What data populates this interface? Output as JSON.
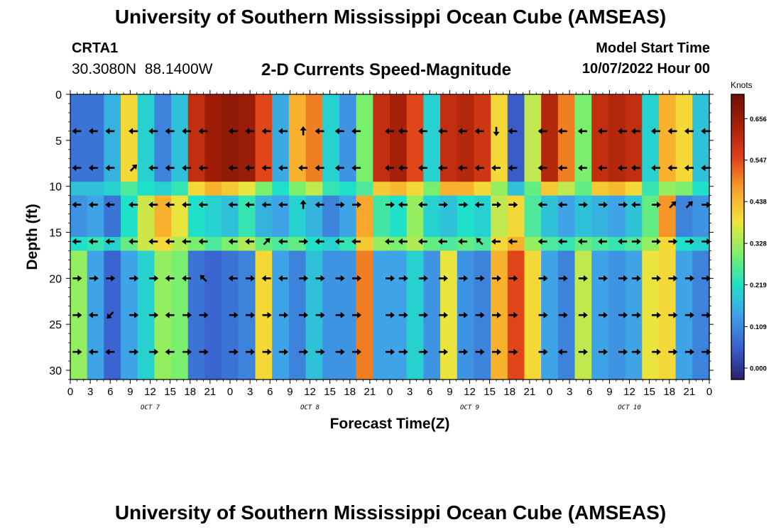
{
  "header": {
    "title": "University of Southern Mississippi Ocean Cube (AMSEAS)",
    "station_id": "CRTA1",
    "lat": "30.3080N",
    "lon": "88.1400W",
    "subtitle": "2-D Currents Speed-Magnitude",
    "model_start_label": "Model Start Time",
    "model_start_value": "10/07/2022 Hour 00"
  },
  "footer": {
    "title": "University of Southern Mississippi Ocean Cube (AMSEAS)"
  },
  "chart_data": {
    "type": "heatmap",
    "title": "2-D Currents Speed-Magnitude",
    "xlabel": "Forecast Time(Z)",
    "ylabel": "Depth (ft)",
    "x_hours_range": [
      0,
      96
    ],
    "ylim": [
      0,
      31
    ],
    "x_tick_step_hours": 3,
    "x_tick_labels": [
      "0",
      "3",
      "6",
      "9",
      "12",
      "15",
      "18",
      "21",
      "0",
      "3",
      "6",
      "9",
      "12",
      "15",
      "18",
      "21",
      "0",
      "3",
      "6",
      "9",
      "12",
      "15",
      "18",
      "21",
      "0",
      "3",
      "6",
      "9",
      "12",
      "15",
      "18",
      "21",
      "0"
    ],
    "day_labels": [
      {
        "text": "OCT 7",
        "hour": 12
      },
      {
        "text": "OCT 8",
        "hour": 36
      },
      {
        "text": "OCT 9",
        "hour": 60
      },
      {
        "text": "OCT 10",
        "hour": 84
      }
    ],
    "y_ticks": [
      0,
      5,
      10,
      15,
      20,
      25,
      30
    ],
    "colorbar": {
      "unit": "Knots",
      "range": [
        -0.03,
        0.72
      ],
      "tick_values": [
        0.0,
        0.109,
        0.219,
        0.328,
        0.438,
        0.547,
        0.656
      ],
      "tick_labels": [
        "0.000",
        "0.109",
        "0.219",
        "0.328",
        "0.438",
        "0.547",
        "0.656"
      ],
      "colors": [
        "#2a1f6e",
        "#3a5fcd",
        "#3fa0e8",
        "#1fe0c8",
        "#7ef06a",
        "#f2e33a",
        "#f9a12a",
        "#e0421a",
        "#a82008",
        "#6e1005"
      ]
    },
    "depth_bands": [
      {
        "top": 0,
        "bottom": 9.5
      },
      {
        "top": 9.5,
        "bottom": 11
      },
      {
        "top": 11,
        "bottom": 15.5
      },
      {
        "top": 15.5,
        "bottom": 17
      },
      {
        "top": 17,
        "bottom": 31
      }
    ],
    "speed_bands": [
      [
        0.08,
        0.08,
        0.16,
        0.4,
        0.2,
        0.1,
        0.18,
        0.6,
        0.65,
        0.67,
        0.66,
        0.55,
        0.15,
        0.45,
        0.5,
        0.2,
        0.12,
        0.3,
        0.6,
        0.64,
        0.55,
        0.2,
        0.6,
        0.62,
        0.58,
        0.4,
        0.05,
        0.35,
        0.62,
        0.5,
        0.3,
        0.6,
        0.62,
        0.6,
        0.2,
        0.45,
        0.4,
        0.18
      ],
      [
        0.18,
        0.18,
        0.2,
        0.26,
        0.22,
        0.2,
        0.24,
        0.4,
        0.45,
        0.42,
        0.38,
        0.3,
        0.22,
        0.3,
        0.35,
        0.24,
        0.22,
        0.26,
        0.42,
        0.44,
        0.4,
        0.3,
        0.45,
        0.45,
        0.4,
        0.32,
        0.18,
        0.28,
        0.42,
        0.35,
        0.28,
        0.42,
        0.44,
        0.4,
        0.24,
        0.32,
        0.3,
        0.22
      ],
      [
        0.12,
        0.14,
        0.08,
        0.22,
        0.36,
        0.45,
        0.38,
        0.22,
        0.2,
        0.18,
        0.24,
        0.16,
        0.14,
        0.2,
        0.16,
        0.1,
        0.14,
        0.46,
        0.25,
        0.22,
        0.32,
        0.2,
        0.18,
        0.22,
        0.2,
        0.35,
        0.4,
        0.26,
        0.18,
        0.14,
        0.18,
        0.16,
        0.14,
        0.18,
        0.28,
        0.48,
        0.1,
        0.12
      ],
      [
        0.22,
        0.24,
        0.2,
        0.28,
        0.36,
        0.4,
        0.34,
        0.3,
        0.26,
        0.3,
        0.34,
        0.28,
        0.26,
        0.28,
        0.22,
        0.2,
        0.24,
        0.42,
        0.32,
        0.3,
        0.34,
        0.28,
        0.26,
        0.28,
        0.26,
        0.4,
        0.45,
        0.32,
        0.26,
        0.24,
        0.28,
        0.26,
        0.24,
        0.26,
        0.32,
        0.4,
        0.22,
        0.2
      ],
      [
        0.32,
        0.14,
        0.06,
        0.14,
        0.2,
        0.32,
        0.3,
        0.08,
        0.06,
        0.08,
        0.1,
        0.4,
        0.14,
        0.1,
        0.18,
        0.12,
        0.12,
        0.5,
        0.14,
        0.14,
        0.2,
        0.12,
        0.38,
        0.12,
        0.1,
        0.45,
        0.55,
        0.4,
        0.14,
        0.1,
        0.35,
        0.14,
        0.12,
        0.14,
        0.38,
        0.4,
        0.14,
        0.1
      ]
    ],
    "arrow_depths": [
      4,
      8,
      12,
      16,
      20,
      24,
      28
    ],
    "arrow_times_hours": [
      1,
      3.5,
      6,
      9.5,
      12.5,
      15,
      17.5,
      20,
      24.5,
      27,
      29.5,
      32,
      35,
      37.5,
      40.5,
      43,
      48,
      50,
      53,
      56,
      59,
      61.5,
      64,
      66.5,
      71,
      74,
      77,
      80,
      83,
      85,
      88,
      90.5,
      93,
      95.5
    ],
    "arrow_direction_rows": [
      [
        "W",
        "W",
        "W",
        "W",
        "W",
        "W",
        "W",
        "W",
        "W",
        "W",
        "W",
        "W",
        "N",
        "W",
        "W",
        "W",
        "W",
        "W",
        "W",
        "W",
        "W",
        "W",
        "S",
        "W",
        "W",
        "W",
        "W",
        "W",
        "W",
        "W",
        "W",
        "W",
        "W",
        "W"
      ],
      [
        "W",
        "W",
        "W",
        "NE",
        "W",
        "W",
        "W",
        "W",
        "W",
        "W",
        "W",
        "W",
        "W",
        "W",
        "W",
        "W",
        "W",
        "W",
        "W",
        "W",
        "W",
        "W",
        "W",
        "W",
        "W",
        "W",
        "W",
        "W",
        "W",
        "W",
        "W",
        "W",
        "W",
        "W"
      ],
      [
        "W",
        "W",
        "W",
        "W",
        "W",
        "W",
        "W",
        "W",
        "W",
        "W",
        "W",
        "W",
        "N",
        "W",
        "E",
        "E",
        "E",
        "W",
        "W",
        "E",
        "E",
        "W",
        "E",
        "E",
        "W",
        "W",
        "E",
        "E",
        "E",
        "W",
        "E",
        "NE",
        "NE",
        "E"
      ],
      [
        "W",
        "W",
        "W",
        "W",
        "W",
        "W",
        "W",
        "W",
        "W",
        "W",
        "NE",
        "W",
        "E",
        "W",
        "W",
        "W",
        "W",
        "W",
        "W",
        "W",
        "W",
        "NW",
        "W",
        "W",
        "W",
        "W",
        "W",
        "W",
        "W",
        "E",
        "E",
        "E",
        "E",
        "E"
      ],
      [
        "E",
        "E",
        "E",
        "E",
        "E",
        "W",
        "W",
        "NW",
        "W",
        "E",
        "W",
        "W",
        "E",
        "E",
        "E",
        "E",
        "E",
        "E",
        "E",
        "E",
        "E",
        "E",
        "E",
        "E",
        "E",
        "E",
        "E",
        "E",
        "E",
        "E",
        "E",
        "E",
        "E",
        "E"
      ],
      [
        "E",
        "W",
        "SW",
        "E",
        "E",
        "W",
        "E",
        "E",
        "E",
        "E",
        "E",
        "E",
        "E",
        "E",
        "E",
        "E",
        "E",
        "E",
        "E",
        "E",
        "E",
        "E",
        "E",
        "E",
        "E",
        "E",
        "E",
        "E",
        "E",
        "E",
        "E",
        "E",
        "E",
        "E"
      ],
      [
        "E",
        "W",
        "W",
        "E",
        "E",
        "W",
        "E",
        "E",
        "E",
        "E",
        "E",
        "E",
        "E",
        "E",
        "E",
        "E",
        "E",
        "E",
        "E",
        "E",
        "E",
        "E",
        "E",
        "E",
        "E",
        "W",
        "E",
        "E",
        "E",
        "E",
        "E",
        "E",
        "E",
        "E"
      ]
    ]
  }
}
